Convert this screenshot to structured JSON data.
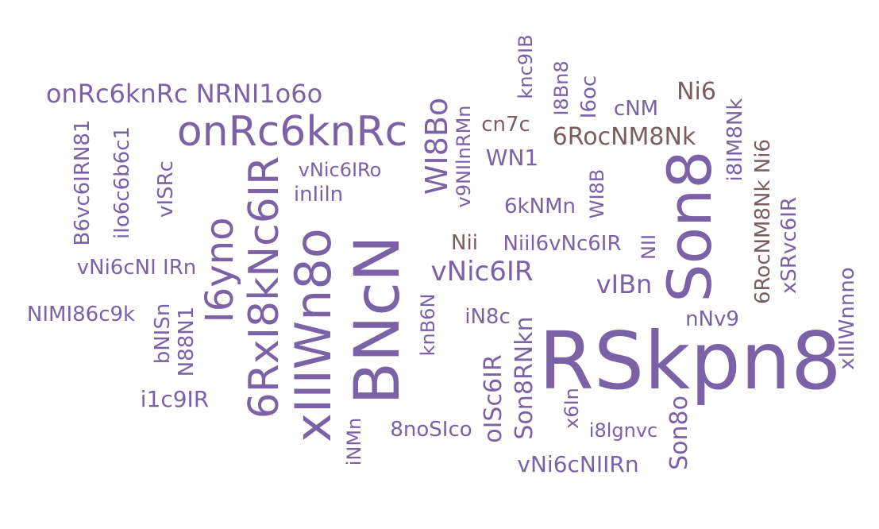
{
  "colors": {
    "primary": "#7b62a6",
    "secondary": "#7b5d60"
  },
  "words": [
    {
      "text": "RSkpn8"
    },
    {
      "text": "BNcN"
    },
    {
      "text": "Son8"
    },
    {
      "text": "xIIIWn8o"
    },
    {
      "text": "6RxI8kNc6IR"
    },
    {
      "text": "onRc6knRc"
    },
    {
      "text": "I6yno"
    },
    {
      "text": "onRc6knRc NRNI1o6o"
    },
    {
      "text": "vNic6IR"
    },
    {
      "text": "6RocNM8Nk"
    },
    {
      "text": "WI8Bo"
    },
    {
      "text": "vIBn"
    },
    {
      "text": "Ni6"
    },
    {
      "text": "vNi6cNIIRn"
    },
    {
      "text": "Son8RNkn"
    },
    {
      "text": "Son8o"
    },
    {
      "text": "vNi6cNI IRn"
    },
    {
      "text": "NIMI86c9k"
    },
    {
      "text": "Niil6vNc6IR"
    },
    {
      "text": "i1c9IR"
    },
    {
      "text": "8noSIco"
    },
    {
      "text": "oISc6IR"
    },
    {
      "text": "6kNMn"
    },
    {
      "text": "vNic6IRo"
    },
    {
      "text": "inIiln"
    },
    {
      "text": "WN1"
    },
    {
      "text": "cn7c"
    },
    {
      "text": "cNM"
    },
    {
      "text": "iN8c"
    },
    {
      "text": "nNv9"
    },
    {
      "text": "i8lgnvc"
    },
    {
      "text": "Nii"
    },
    {
      "text": "v9NIlnRMn"
    },
    {
      "text": "knc9IB"
    },
    {
      "text": "I8Bn8"
    },
    {
      "text": "I6oc"
    },
    {
      "text": "i8IM8Nk"
    },
    {
      "text": "6RocNM8Nk Ni6"
    },
    {
      "text": "xSRvc6IR"
    },
    {
      "text": "xIIIWnnno"
    },
    {
      "text": "B6vc6IRN81"
    },
    {
      "text": "iIo6c6b6c1"
    },
    {
      "text": "vISRc"
    },
    {
      "text": "bNISn"
    },
    {
      "text": "N88N1"
    },
    {
      "text": "knB6N"
    },
    {
      "text": "iNMn"
    },
    {
      "text": "x6In"
    },
    {
      "text": "WI8B"
    },
    {
      "text": "NII"
    }
  ]
}
